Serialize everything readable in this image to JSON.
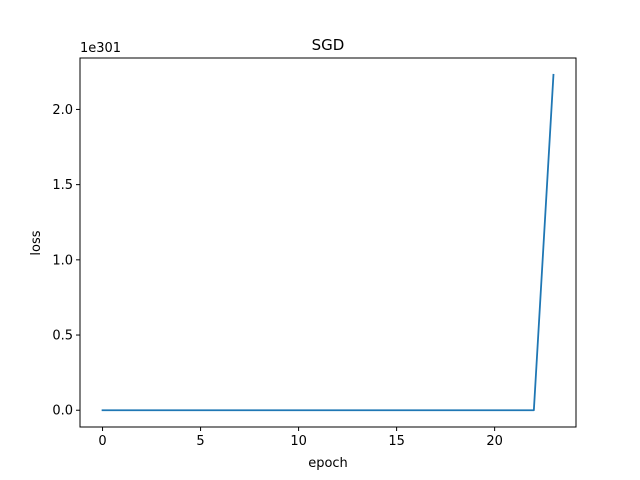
{
  "chart_data": {
    "type": "line",
    "title": "SGD",
    "xlabel": "epoch",
    "ylabel": "loss",
    "y_offset_label": "1e301",
    "xlim": [
      -1.15,
      24.15
    ],
    "ylim": [
      -0.1115,
      2.342
    ],
    "xticks": [
      0,
      5,
      10,
      15,
      20
    ],
    "xtick_labels": [
      "0",
      "5",
      "10",
      "15",
      "20"
    ],
    "yticks": [
      0.0,
      0.5,
      1.0,
      1.5,
      2.0
    ],
    "ytick_labels": [
      "0.0",
      "0.5",
      "1.0",
      "1.5",
      "2.0"
    ],
    "y_multiplier": 1e+301,
    "grid": false,
    "series": [
      {
        "color": "#1f77b4",
        "x": [
          0,
          1,
          2,
          3,
          4,
          5,
          6,
          7,
          8,
          9,
          10,
          11,
          12,
          13,
          14,
          15,
          16,
          17,
          18,
          19,
          20,
          21,
          22,
          23
        ],
        "values": [
          0,
          0,
          0,
          0,
          0,
          0,
          0,
          0,
          0,
          0,
          0,
          0,
          0,
          0,
          0,
          0,
          0,
          0,
          0,
          0,
          0,
          0,
          0,
          2.23
        ]
      }
    ]
  }
}
